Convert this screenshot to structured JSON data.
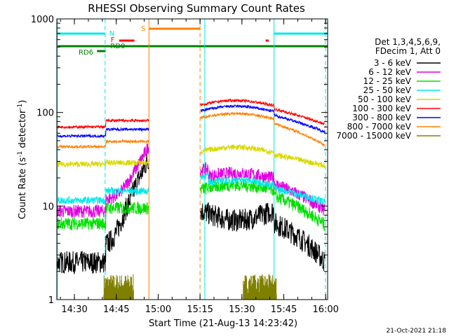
{
  "chart_data": {
    "type": "line",
    "title": "RHESSI Observing Summary Count Rates",
    "xlabel": "Start Time (21-Aug-13 14:23:42)",
    "ylabel": "Count Rate (s⁻¹ detector⁻¹)",
    "ylabel_main": "Count Rate (s",
    "ylabel_sup1": "-1",
    "ylabel_mid": " detector",
    "ylabel_sup2": "-1",
    "ylabel_end": ")",
    "yscale": "log",
    "ylim": [
      1,
      1000
    ],
    "xlim_minutes": [
      0,
      97
    ],
    "x_tick_labels": [
      "14:30",
      "14:45",
      "15:00",
      "15:15",
      "15:30",
      "15:45",
      "16:00"
    ],
    "x_tick_minutes": [
      6.3,
      21.3,
      36.3,
      51.3,
      66.3,
      81.3,
      96.3
    ],
    "y_tick_labels": [
      "1",
      "10",
      "100",
      "1000"
    ],
    "y_tick_values": [
      1,
      10,
      100,
      1000
    ],
    "legend_header": [
      "Det 1,3,4,5,6,9,",
      "FDecim 1, Att 0"
    ],
    "legend_position": "right",
    "series": [
      {
        "name": "3 - 6 keV",
        "color": "#000000",
        "pre": 2.5,
        "pre2": 4.0,
        "post": 8.0,
        "endv": 2.5,
        "noise": 0.12
      },
      {
        "name": "6 - 12 keV",
        "color": "#e000e0",
        "pre": 8.8,
        "pre2": 14.0,
        "post": 20.0,
        "endv": 9.0,
        "noise": 0.07
      },
      {
        "name": "12 - 25 keV",
        "color": "#00e000",
        "pre": 6.5,
        "pre2": 9.5,
        "post": 15.0,
        "endv": 6.3,
        "noise": 0.07
      },
      {
        "name": "25 - 50 keV",
        "color": "#00e8e8",
        "pre": 11.5,
        "pre2": 14.5,
        "post": 17.0,
        "endv": 11.0,
        "noise": 0.04
      },
      {
        "name": "50 - 100 keV",
        "color": "#d8d800",
        "pre": 28.0,
        "pre2": 29.0,
        "post": 38.0,
        "endv": 27.0,
        "noise": 0.03
      },
      {
        "name": "100 - 300 keV",
        "color": "#ff0000",
        "pre": 70.0,
        "pre2": 82.0,
        "post": 120.0,
        "endv": 75.0,
        "noise": 0.015
      },
      {
        "name": "300 - 800 keV",
        "color": "#0000ff",
        "pre": 56.0,
        "pre2": 66.0,
        "post": 104.0,
        "endv": 62.0,
        "noise": 0.015
      },
      {
        "name": "800 - 7000 keV",
        "color": "#ff8000",
        "pre": 43.0,
        "pre2": 49.0,
        "post": 87.0,
        "endv": 45.0,
        "noise": 0.015
      },
      {
        "name": "7000 - 15000 keV",
        "color": "#808000",
        "pre": null,
        "pre2": null,
        "post": null,
        "endv": null,
        "noise": 0
      }
    ],
    "markers": {
      "N": {
        "label": "N",
        "color": "#00e8e8"
      },
      "F": {
        "label": "F",
        "color": "#ff0000"
      },
      "S": {
        "label": "S",
        "color": "#ff8000"
      },
      "RD0": {
        "label": "RD0",
        "color": "#008000"
      },
      "RD6": {
        "label": "RD6",
        "color": "#008000"
      }
    },
    "timestamp": "21-Oct-2021 21:18"
  }
}
